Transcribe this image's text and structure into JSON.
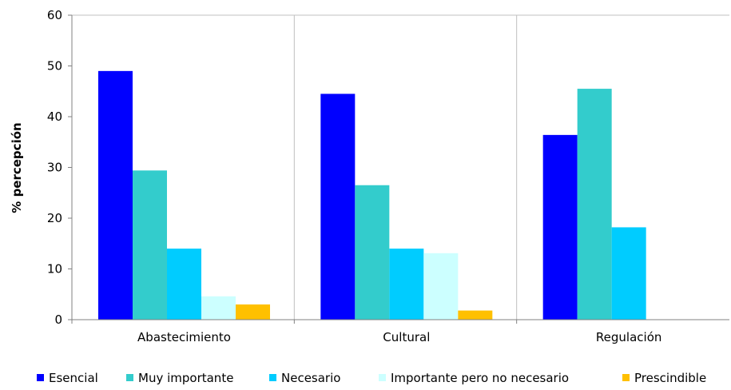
{
  "chart_data": {
    "type": "bar",
    "title": "",
    "xlabel": "",
    "ylabel": "% percepción",
    "ylim": [
      0,
      60
    ],
    "yticks": [
      0,
      10,
      20,
      30,
      40,
      50,
      60
    ],
    "categories": [
      "Abastecimiento",
      "Cultural",
      "Regulación"
    ],
    "grid": "vertical category separators",
    "legend_position": "bottom",
    "series": [
      {
        "name": "Esencial",
        "color": "#0000FF",
        "values": [
          49,
          44.5,
          36.4
        ]
      },
      {
        "name": "Muy importante",
        "color": "#33CCCC",
        "values": [
          29.4,
          26.5,
          45.5
        ]
      },
      {
        "name": "Necesario",
        "color": "#00CCFF",
        "values": [
          14,
          14,
          18.2
        ]
      },
      {
        "name": "Importante pero no necesario",
        "color": "#CCFFFF",
        "values": [
          4.6,
          13.1,
          0
        ]
      },
      {
        "name": "Prescindible",
        "color": "#FFC000",
        "values": [
          3,
          1.8,
          0
        ]
      }
    ]
  }
}
